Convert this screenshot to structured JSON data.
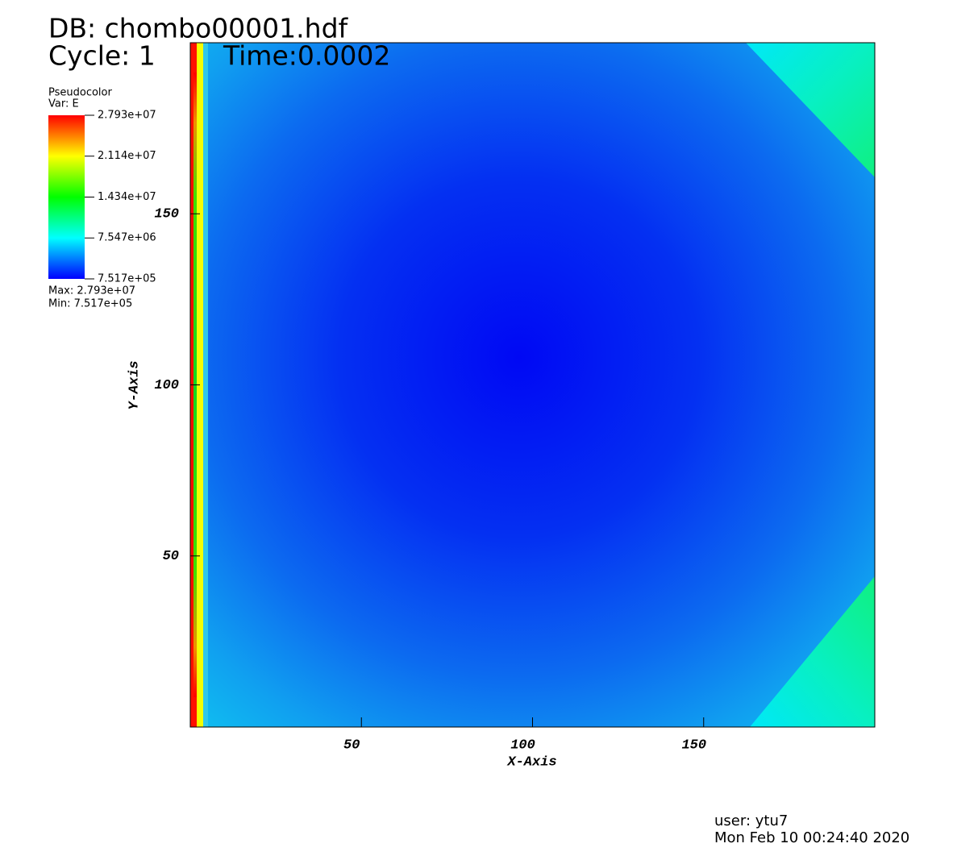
{
  "chart_data": {
    "type": "pseudocolor",
    "title": "DB: chombo00001.hdf",
    "cycle": "Cycle: 1",
    "time": "Time:0.0002",
    "xlabel": "X-Axis",
    "ylabel": "Y-Axis",
    "xlim": [
      0,
      200
    ],
    "ylim": [
      0,
      200
    ],
    "xticks": [
      50,
      100,
      150
    ],
    "yticks": [
      50,
      100,
      150
    ],
    "legend": {
      "title": "Pseudocolor",
      "var": "Var: E",
      "range": [
        751700,
        27930000
      ],
      "ticks": [
        {
          "value": 27930000,
          "label": "2.793e+07"
        },
        {
          "value": 21140000,
          "label": "2.114e+07"
        },
        {
          "value": 14340000,
          "label": "1.434e+07"
        },
        {
          "value": 7547000,
          "label": "7.547e+06"
        },
        {
          "value": 751700,
          "label": "7.517e+05"
        }
      ],
      "colors": [
        "#ff0000",
        "#ffff00",
        "#00ff00",
        "#00ffff",
        "#0000ff"
      ],
      "max": "Max: 2.793e+07",
      "min": "Min:  7.517e+05"
    },
    "user": "user: ytu7",
    "date": "Mon Feb 10 00:24:40 2020"
  }
}
